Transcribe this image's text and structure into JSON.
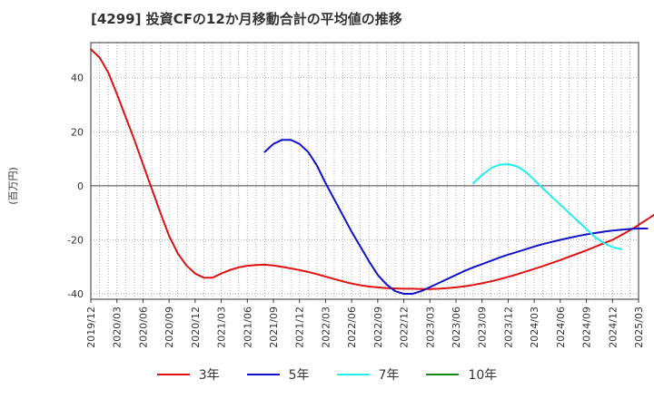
{
  "chart_data": {
    "type": "line",
    "title": "[4299]  投資CFの12か月移動合計の平均値の推移",
    "ylabel": "(百万円)",
    "ylim": [
      -42,
      53
    ],
    "yticks": [
      -40,
      -20,
      0,
      20,
      40
    ],
    "x_tick_labels": [
      "2019/12",
      "2020/03",
      "2020/06",
      "2020/09",
      "2020/12",
      "2021/03",
      "2021/06",
      "2021/09",
      "2021/12",
      "2022/03",
      "2022/06",
      "2022/09",
      "2022/12",
      "2023/03",
      "2023/06",
      "2023/09",
      "2023/12",
      "2024/03",
      "2024/06",
      "2024/09",
      "2024/12",
      "2025/03"
    ],
    "x_start": "2019/12",
    "grid": true,
    "legend_position": "bottom",
    "series": [
      {
        "name": "3年",
        "color": "#dd1111",
        "start": "2019/12",
        "values": [
          50.5,
          47.5,
          42,
          34,
          25.5,
          17,
          8,
          -1,
          -10,
          -18.5,
          -25,
          -29.5,
          -32.5,
          -34,
          -34,
          -32.5,
          -31.2,
          -30.2,
          -29.6,
          -29.3,
          -29.2,
          -29.5,
          -30,
          -30.6,
          -31.2,
          -31.9,
          -32.7,
          -33.6,
          -34.5,
          -35.4,
          -36.2,
          -36.8,
          -37.3,
          -37.6,
          -37.9,
          -38,
          -38.1,
          -38.1,
          -38.2,
          -38.2,
          -38.1,
          -37.9,
          -37.6,
          -37.2,
          -36.7,
          -36.1,
          -35.4,
          -34.6,
          -33.7,
          -32.8,
          -31.8,
          -30.8,
          -29.7,
          -28.6,
          -27.5,
          -26.3,
          -25.1,
          -23.9,
          -22.6,
          -21.3,
          -20,
          -18.3,
          -16.5,
          -14.5,
          -12.4,
          -10.3,
          -8.2,
          -6.2,
          -4.3,
          -2.6,
          -0.9
        ]
      },
      {
        "name": "5年",
        "color": "#1111cc",
        "start": "2021/08",
        "values": [
          12.5,
          15.5,
          17,
          17,
          15.5,
          12.5,
          7.5,
          1,
          -5,
          -11,
          -17,
          -22.5,
          -28,
          -33,
          -36.5,
          -39,
          -40,
          -40,
          -39,
          -37.5,
          -36,
          -34.5,
          -33,
          -31.5,
          -30.2,
          -29,
          -27.8,
          -26.6,
          -25.5,
          -24.5,
          -23.5,
          -22.5,
          -21.6,
          -20.8,
          -20,
          -19.3,
          -18.6,
          -18,
          -17.5,
          -17,
          -16.6,
          -16.3,
          -16,
          -15.8,
          -15.8
        ]
      },
      {
        "name": "7年",
        "color": "#22eeee",
        "start": "2023/08",
        "values": [
          1,
          4,
          6.5,
          7.8,
          8,
          7.2,
          5.2,
          2.2,
          -1,
          -4,
          -7,
          -10,
          -13,
          -16,
          -19,
          -21.2,
          -22.7,
          -23.5
        ]
      },
      {
        "name": "10年",
        "color": "#118811",
        "start": "2019/12",
        "values": []
      }
    ]
  }
}
